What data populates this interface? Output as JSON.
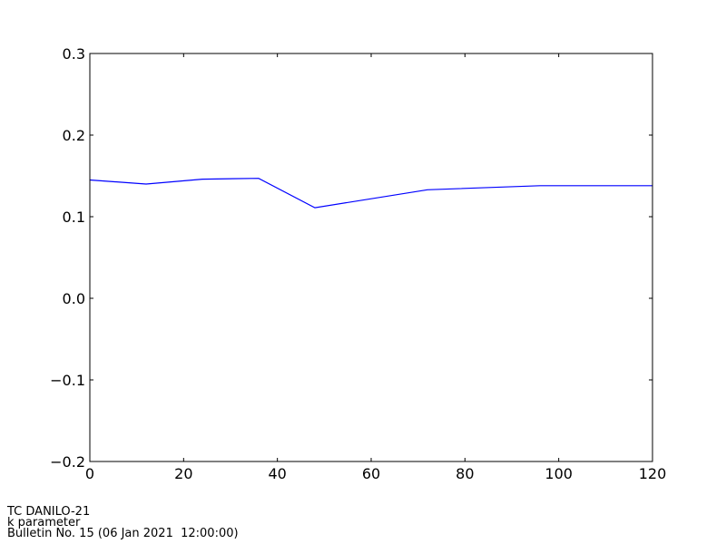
{
  "chart_data": {
    "type": "line",
    "title": "",
    "xlabel": "",
    "ylabel": "",
    "xlim": [
      0,
      120
    ],
    "ylim": [
      -0.2,
      0.3
    ],
    "xticks": [
      0,
      20,
      40,
      60,
      80,
      100,
      120
    ],
    "xtick_labels": [
      "0",
      "20",
      "40",
      "60",
      "80",
      "100",
      "120"
    ],
    "yticks": [
      -0.2,
      -0.1,
      0.0,
      0.1,
      0.2,
      0.3
    ],
    "ytick_labels": [
      "−0.2",
      "−0.1",
      "0.0",
      "0.1",
      "0.2",
      "0.3"
    ],
    "grid": false,
    "series": [
      {
        "color": "#0000ff",
        "x": [
          0,
          12,
          24,
          36,
          48,
          72,
          96,
          120
        ],
        "y": [
          0.145,
          0.14,
          0.146,
          0.147,
          0.111,
          0.133,
          0.138,
          0.138
        ]
      }
    ]
  },
  "footer": {
    "line1": "TC DANILO-21",
    "line2": "k parameter",
    "line3": "Bulletin No. 15 (06 Jan 2021  12:00:00)"
  }
}
